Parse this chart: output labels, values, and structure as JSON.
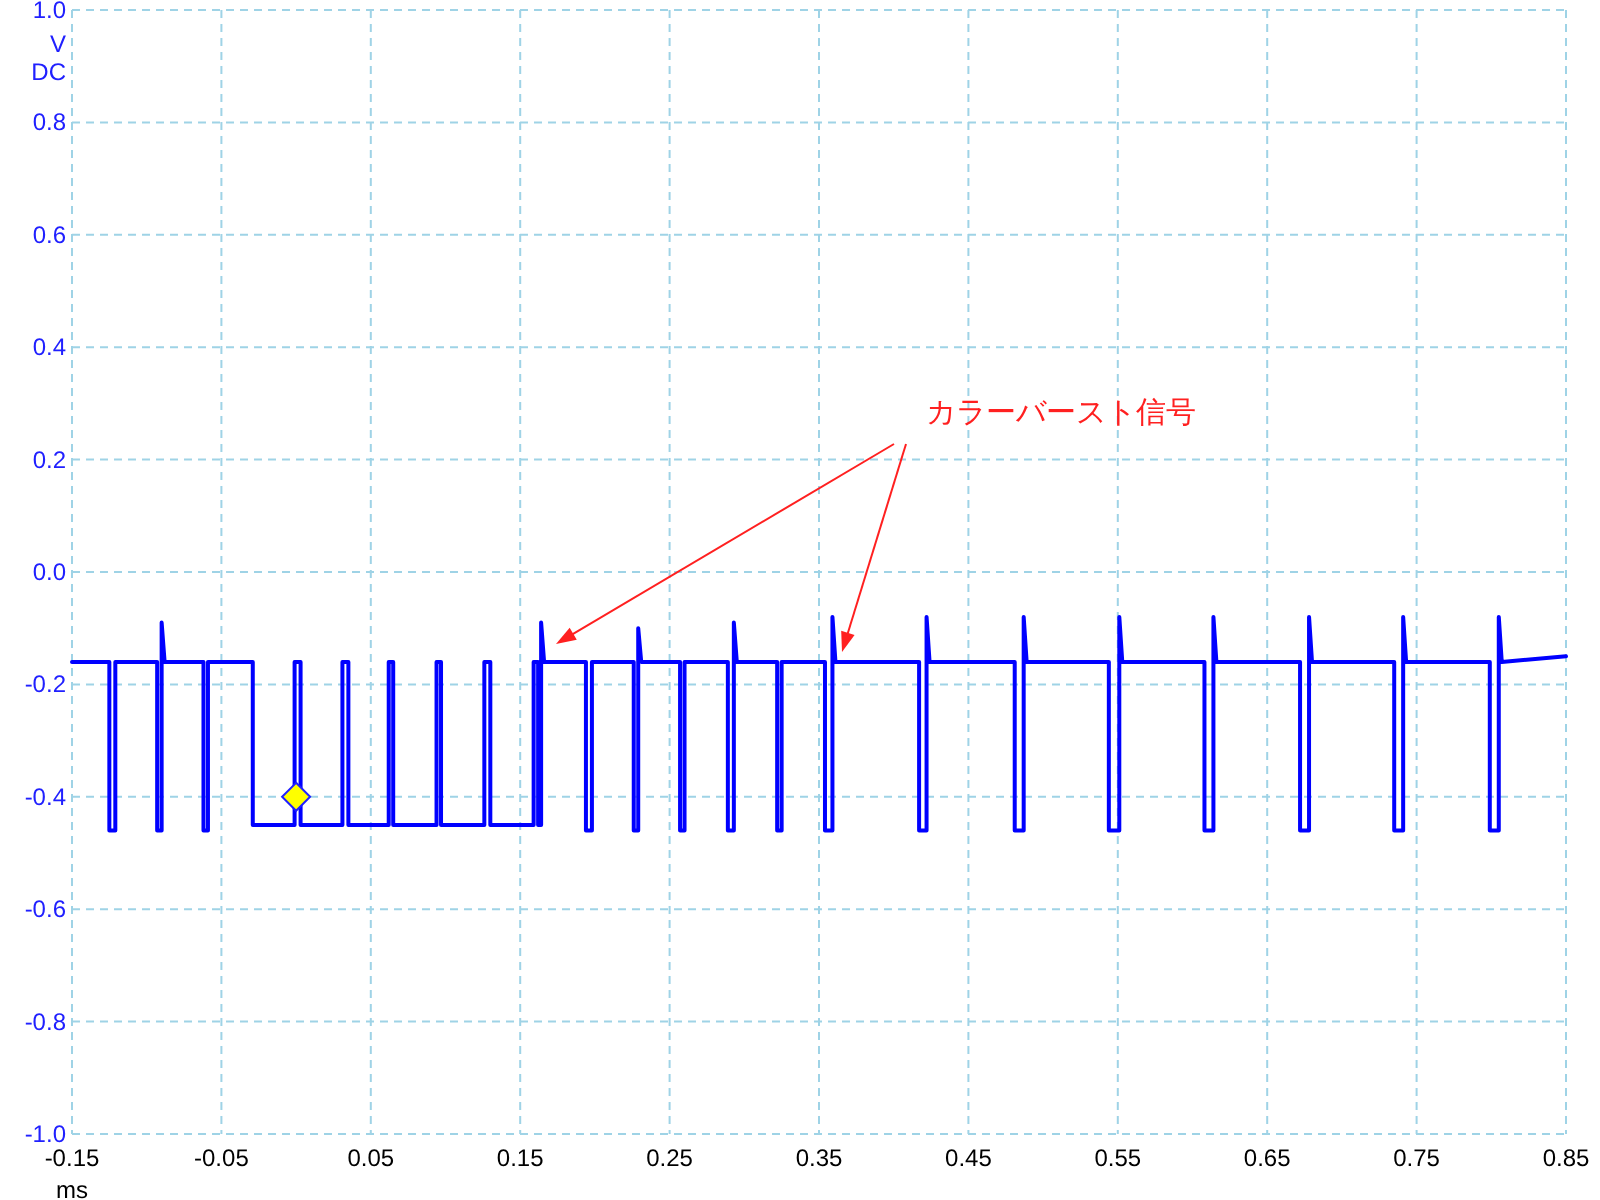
{
  "chart_data": {
    "type": "line",
    "xlabel": "ms",
    "ylabel": "V DC",
    "xlim": [
      -0.15,
      0.85
    ],
    "ylim": [
      -1.0,
      1.0
    ],
    "xticks": [
      -0.15,
      -0.05,
      0.05,
      0.15,
      0.25,
      0.35,
      0.45,
      0.55,
      0.65,
      0.75,
      0.85
    ],
    "yticks": [
      {
        "value": -1.0,
        "label": "-1.0"
      },
      -0.8,
      -0.6,
      -0.4,
      -0.2,
      {
        "value": 0,
        "label": "0.0"
      },
      0.2,
      0.4,
      0.6,
      0.8,
      {
        "value": 1.0,
        "label": "1.0"
      }
    ],
    "grid": true,
    "line_style": "solid",
    "annotations": [
      "カラーバースト信号"
    ],
    "series": [
      {
        "color": "#0000ff",
        "x": [
          -0.15,
          -0.125,
          -0.125,
          -0.121,
          -0.121,
          -0.093,
          -0.093,
          -0.09,
          -0.09,
          -0.088,
          -0.062,
          -0.062,
          -0.059,
          -0.059,
          -0.029,
          -0.029,
          -0.001,
          -0.001,
          0.003,
          0.003,
          0.031,
          0.031,
          0.035,
          0.035,
          0.062,
          0.062,
          0.065,
          0.065,
          0.094,
          0.094,
          0.097,
          0.097,
          0.126,
          0.126,
          0.13,
          0.13,
          0.159,
          0.159,
          0.162,
          0.162,
          0.164,
          0.164,
          0.166,
          0.194,
          0.194,
          0.198,
          0.198,
          0.226,
          0.226,
          0.229,
          0.229,
          0.231,
          0.257,
          0.257,
          0.26,
          0.26,
          0.289,
          0.289,
          0.293,
          0.293,
          0.295,
          0.322,
          0.322,
          0.325,
          0.325,
          0.354,
          0.354,
          0.359,
          0.359,
          0.361,
          0.417,
          0.417,
          0.422,
          0.422,
          0.424,
          0.481,
          0.481,
          0.487,
          0.487,
          0.489,
          0.544,
          0.544,
          0.551,
          0.551,
          0.553,
          0.608,
          0.608,
          0.614,
          0.614,
          0.616,
          0.672,
          0.672,
          0.678,
          0.678,
          0.68,
          0.735,
          0.735,
          0.741,
          0.741,
          0.743,
          0.799,
          0.799,
          0.805,
          0.805,
          0.807,
          0.85
        ],
        "values": [
          -0.16,
          -0.16,
          -0.46,
          -0.46,
          -0.16,
          -0.16,
          -0.46,
          -0.46,
          -0.09,
          -0.16,
          -0.16,
          -0.46,
          -0.46,
          -0.16,
          -0.16,
          -0.45,
          -0.45,
          -0.16,
          -0.16,
          -0.45,
          -0.45,
          -0.16,
          -0.16,
          -0.45,
          -0.45,
          -0.16,
          -0.16,
          -0.45,
          -0.45,
          -0.16,
          -0.16,
          -0.45,
          -0.45,
          -0.16,
          -0.16,
          -0.45,
          -0.45,
          -0.16,
          -0.16,
          -0.45,
          -0.45,
          -0.09,
          -0.16,
          -0.16,
          -0.46,
          -0.46,
          -0.16,
          -0.16,
          -0.46,
          -0.46,
          -0.1,
          -0.16,
          -0.16,
          -0.46,
          -0.46,
          -0.16,
          -0.16,
          -0.46,
          -0.46,
          -0.09,
          -0.16,
          -0.16,
          -0.46,
          -0.46,
          -0.16,
          -0.16,
          -0.46,
          -0.46,
          -0.08,
          -0.16,
          -0.16,
          -0.46,
          -0.46,
          -0.08,
          -0.16,
          -0.16,
          -0.46,
          -0.46,
          -0.08,
          -0.16,
          -0.16,
          -0.46,
          -0.46,
          -0.08,
          -0.16,
          -0.16,
          -0.46,
          -0.46,
          -0.08,
          -0.16,
          -0.16,
          -0.46,
          -0.46,
          -0.08,
          -0.16,
          -0.16,
          -0.46,
          -0.46,
          -0.08,
          -0.16,
          -0.16,
          -0.46,
          -0.46,
          -0.08,
          -0.16,
          -0.15
        ]
      },
      {
        "type": "scatter",
        "marker": "diamond",
        "color": "#ffff00",
        "x": [
          0.0
        ],
        "values": [
          -0.4
        ]
      }
    ]
  }
}
